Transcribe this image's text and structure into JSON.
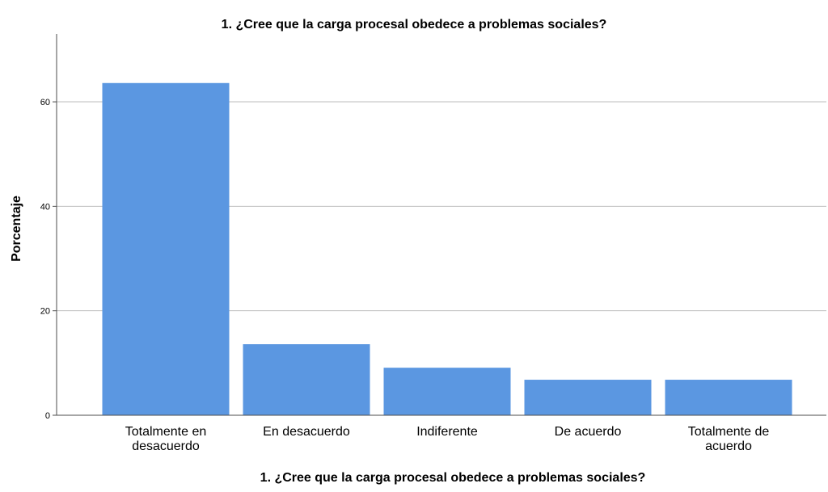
{
  "chart_data": {
    "type": "bar",
    "title": "1.  ¿Cree que la carga procesal obedece a problemas sociales?",
    "xlabel": "1.  ¿Cree que la carga procesal obedece a problemas sociales?",
    "ylabel": "Porcentaje",
    "categories": [
      [
        "Totalmente en",
        "desacuerdo"
      ],
      [
        "En desacuerdo"
      ],
      [
        "Indiferente"
      ],
      [
        "De acuerdo"
      ],
      [
        "Totalmente de",
        "acuerdo"
      ]
    ],
    "values": [
      63.6,
      13.6,
      9.1,
      6.8,
      6.8
    ],
    "yticks": [
      0,
      20,
      40,
      60
    ],
    "ylim": [
      0,
      73
    ],
    "grid": true,
    "colors": {
      "bar": "#5B97E1",
      "grid": "#BDBDBD",
      "axis": "#4D4D4D",
      "text": "#000000"
    }
  }
}
